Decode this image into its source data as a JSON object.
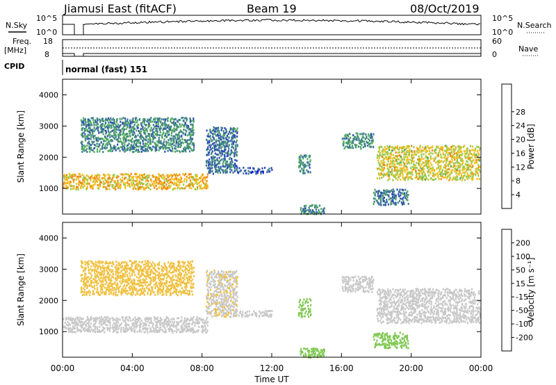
{
  "header": {
    "title": "Jiamusi East (fitACF)",
    "beam": "Beam 19",
    "date": "08/Oct/2019"
  },
  "status_panels": {
    "nsky_label": "N.Sky",
    "nsky_ticks": [
      "10^5",
      "10^0"
    ],
    "nsearch_label": "N.Search",
    "nsearch_ticks": [
      "10^5",
      "10^0"
    ],
    "freq_label_1": "Freq.",
    "freq_label_2": "[MHz]",
    "freq_ticks": [
      "18",
      "8"
    ],
    "nave_label": "Nave",
    "nave_ticks": [
      "60",
      "0"
    ],
    "cpid_label": "CPID",
    "cpid_value": "normal (fast) 151"
  },
  "colorbars": {
    "power": {
      "label": "Power [dB]",
      "ticks": [
        "4",
        "8",
        "12",
        "16",
        "20",
        "24",
        "28"
      ],
      "colors": [
        "#1010e0",
        "#2a4fb0",
        "#3f7f8a",
        "#4ea860",
        "#9bc84a",
        "#f0c020",
        "#f08a10",
        "#f04a10",
        "#e01010"
      ]
    },
    "velocity": {
      "label": "Velocity [m s⁻¹]",
      "ticks": [
        "-200",
        "-100",
        "-50",
        "-15",
        "15",
        "50",
        "100",
        "200"
      ],
      "colors": [
        "#e01010",
        "#f05010",
        "#f09010",
        "#f0c040",
        "#c8c8c8",
        "#7ec850",
        "#3a9a3a",
        "#2a7a7a",
        "#1a3aa0"
      ]
    }
  },
  "chart_data": [
    {
      "type": "heatmap",
      "panel": "power",
      "ylabel": "Slant Range [km]",
      "xlabel": "Time UT",
      "x_ticks": [
        "00:00",
        "04:00",
        "08:00",
        "12:00",
        "16:00",
        "20:00",
        "00:00"
      ],
      "y_ticks": [
        "1000",
        "2000",
        "3000",
        "4000"
      ],
      "xlim_hours": [
        0,
        24
      ],
      "ylim_km": [
        180,
        4500
      ],
      "units": "dB",
      "grid": false,
      "bands": [
        {
          "t": [
            0,
            8.3
          ],
          "r": [
            1000,
            1500
          ],
          "value": 20
        },
        {
          "t": [
            1.0,
            7.5
          ],
          "r": [
            2200,
            3300
          ],
          "value": 10
        },
        {
          "t": [
            8.2,
            10.0
          ],
          "r": [
            1500,
            3000
          ],
          "value": 8
        },
        {
          "t": [
            10.0,
            12.0
          ],
          "r": [
            1500,
            1700
          ],
          "value": 6
        },
        {
          "t": [
            13.5,
            14.2
          ],
          "r": [
            1500,
            2100
          ],
          "value": 10
        },
        {
          "t": [
            16.0,
            17.8
          ],
          "r": [
            2300,
            2800
          ],
          "value": 10
        },
        {
          "t": [
            18.0,
            24.0
          ],
          "r": [
            1300,
            2400
          ],
          "value": 18
        },
        {
          "t": [
            17.8,
            19.8
          ],
          "r": [
            500,
            1000
          ],
          "value": 8
        },
        {
          "t": [
            13.6,
            15.0
          ],
          "r": [
            200,
            500
          ],
          "value": 10
        }
      ]
    },
    {
      "type": "heatmap",
      "panel": "velocity",
      "ylabel": "Slant Range [km]",
      "xlabel": "Time UT",
      "x_ticks": [
        "00:00",
        "04:00",
        "08:00",
        "12:00",
        "16:00",
        "20:00",
        "00:00"
      ],
      "y_ticks": [
        "1000",
        "2000",
        "3000",
        "4000"
      ],
      "xlim_hours": [
        0,
        24
      ],
      "ylim_km": [
        180,
        4500
      ],
      "units": "m s-1",
      "grid": false,
      "bands": [
        {
          "t": [
            0,
            8.3
          ],
          "r": [
            1000,
            1500
          ],
          "value": 0
        },
        {
          "t": [
            1.0,
            7.5
          ],
          "r": [
            2200,
            3300
          ],
          "value": -40
        },
        {
          "t": [
            8.2,
            10.0
          ],
          "r": [
            1500,
            3000
          ],
          "value": -10
        },
        {
          "t": [
            10.0,
            12.0
          ],
          "r": [
            1500,
            1700
          ],
          "value": 0
        },
        {
          "t": [
            13.5,
            14.2
          ],
          "r": [
            1500,
            2100
          ],
          "value": 40
        },
        {
          "t": [
            16.0,
            17.8
          ],
          "r": [
            2300,
            2800
          ],
          "value": 0
        },
        {
          "t": [
            18.0,
            24.0
          ],
          "r": [
            1300,
            2400
          ],
          "value": 0
        },
        {
          "t": [
            17.8,
            19.8
          ],
          "r": [
            500,
            1000
          ],
          "value": 40
        },
        {
          "t": [
            13.6,
            15.0
          ],
          "r": [
            200,
            500
          ],
          "value": 40
        }
      ]
    }
  ]
}
